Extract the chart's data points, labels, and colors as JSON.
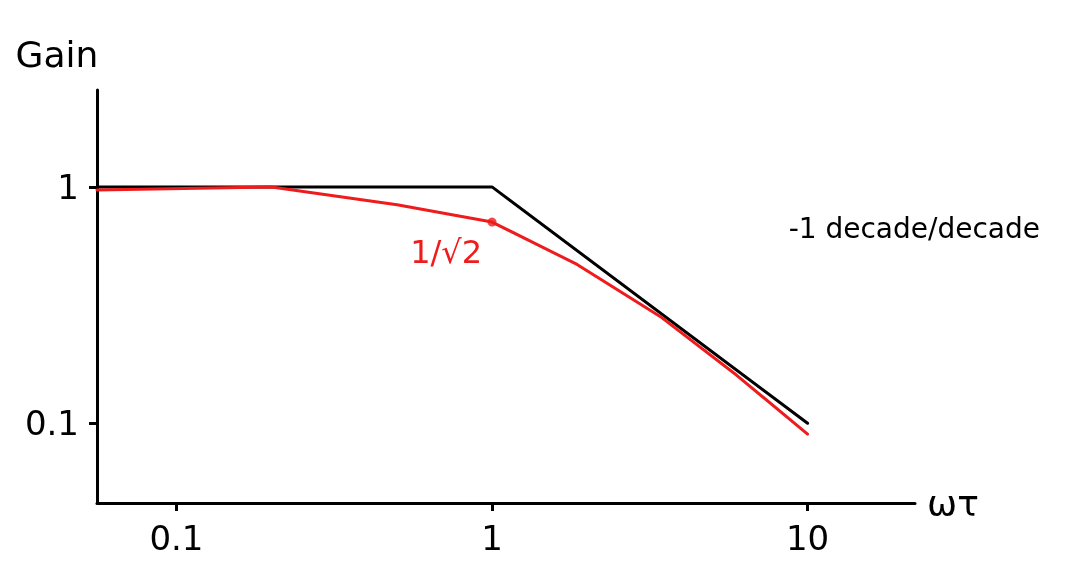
{
  "chart_data": {
    "type": "line",
    "xlabel": "ωτ",
    "ylabel": "Gain",
    "log": "xy",
    "xlim": [
      0.056,
      21.9
    ],
    "xticks": [
      0.1,
      1,
      10
    ],
    "ylim": [
      0.046,
      2.57
    ],
    "yticks": [
      0.1,
      1
    ],
    "grid": false,
    "marker": "none",
    "line_style": "solid",
    "series": [
      {
        "color": "#000000",
        "x": [
          0.056,
          1,
          10
        ],
        "values": [
          1,
          1,
          0.1
        ]
      },
      {
        "color": "#ee1c1c",
        "x": [
          0.056,
          0.2,
          0.5,
          1,
          1.86,
          3.45,
          5.95,
          10
        ],
        "values": [
          0.97,
          1,
          0.84,
          0.71,
          0.47,
          0.28,
          0.16,
          0.09
        ]
      },
      {
        "type": "scatter",
        "marker": "circle",
        "color": "#ee1c1c",
        "x": [
          1
        ],
        "values": [
          0.71
        ]
      }
    ],
    "annotations": [
      {
        "text": "1/√2",
        "x": 1,
        "y": 0.71
      },
      "-1 decade/decade"
    ]
  }
}
